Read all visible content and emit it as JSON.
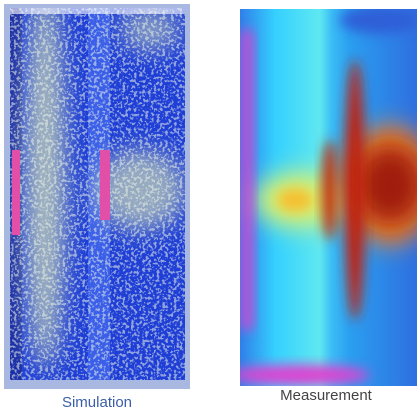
{
  "panels": [
    {
      "caption": "Simulation"
    },
    {
      "caption": "Measurement"
    }
  ]
}
